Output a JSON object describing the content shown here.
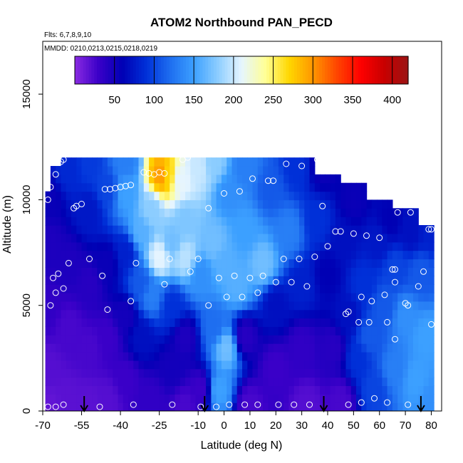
{
  "chart_data": {
    "type": "heatmap",
    "title": "ATOM2 Northbound PAN_PECD",
    "flights_note": "Flts: 6,7,8,9,10",
    "dates_note": "MMDD: 0210,0213,0215,0218,0219",
    "xlabel": "Latitude (deg N)",
    "ylabel": "Altitude (m)",
    "xlim": [
      -70,
      84
    ],
    "ylim": [
      0,
      17500
    ],
    "xticks": [
      -70,
      -55,
      -40,
      -25,
      -10,
      0,
      10,
      20,
      30,
      40,
      50,
      60,
      70,
      80
    ],
    "xtick_labels": [
      "-70",
      "-55",
      "-40",
      "-25",
      "-10",
      "0",
      "10",
      "20",
      "30",
      "40",
      "50",
      "60",
      "70",
      "80"
    ],
    "yticks": [
      0,
      5000,
      10000,
      15000
    ],
    "ytick_labels": [
      "0",
      "5000",
      "10000",
      "15000"
    ],
    "colorbar": {
      "range": [
        0,
        420
      ],
      "ticks": [
        50,
        100,
        150,
        200,
        250,
        300,
        350,
        400
      ],
      "tick_labels": [
        "50",
        "100",
        "150",
        "200",
        "250",
        "300",
        "350",
        "400"
      ],
      "colors": [
        "#8a2be2",
        "#3a00c8",
        "#0000b4",
        "#0030d8",
        "#1e6ef0",
        "#3ca0ff",
        "#8ccdff",
        "#e6f5ff",
        "#ffff96",
        "#ffd700",
        "#ff9600",
        "#ff4600",
        "#ff0000",
        "#c80000",
        "#9b1414"
      ]
    },
    "grid": false,
    "legend": "colorbar top",
    "takeoff_arrows_lat": [
      -54,
      -7.5,
      38.5,
      76
    ],
    "field_points": [
      {
        "x": -68,
        "y": 200,
        "v": 15
      },
      {
        "x": -68,
        "y": 2000,
        "v": 20
      },
      {
        "x": -68,
        "y": 5000,
        "v": 35
      },
      {
        "x": -68,
        "y": 8000,
        "v": 45
      },
      {
        "x": -68,
        "y": 10000,
        "v": 55
      },
      {
        "x": -60,
        "y": 500,
        "v": 18
      },
      {
        "x": -60,
        "y": 4000,
        "v": 25
      },
      {
        "x": -60,
        "y": 7000,
        "v": 45
      },
      {
        "x": -60,
        "y": 11500,
        "v": 85
      },
      {
        "x": -52,
        "y": 300,
        "v": 18
      },
      {
        "x": -52,
        "y": 3000,
        "v": 25
      },
      {
        "x": -52,
        "y": 6000,
        "v": 40
      },
      {
        "x": -52,
        "y": 9500,
        "v": 75
      },
      {
        "x": -52,
        "y": 11800,
        "v": 95
      },
      {
        "x": -45,
        "y": 500,
        "v": 20
      },
      {
        "x": -45,
        "y": 3500,
        "v": 30
      },
      {
        "x": -45,
        "y": 7000,
        "v": 55
      },
      {
        "x": -45,
        "y": 10500,
        "v": 100
      },
      {
        "x": -38,
        "y": 1500,
        "v": 30
      },
      {
        "x": -38,
        "y": 4500,
        "v": 50
      },
      {
        "x": -38,
        "y": 7500,
        "v": 80
      },
      {
        "x": -38,
        "y": 10300,
        "v": 150
      },
      {
        "x": -38,
        "y": 11800,
        "v": 130
      },
      {
        "x": -32,
        "y": 3500,
        "v": 70
      },
      {
        "x": -32,
        "y": 6000,
        "v": 110
      },
      {
        "x": -32,
        "y": 8500,
        "v": 160
      },
      {
        "x": -28,
        "y": 500,
        "v": 35
      },
      {
        "x": -28,
        "y": 5500,
        "v": 130
      },
      {
        "x": -28,
        "y": 9500,
        "v": 180
      },
      {
        "x": -25,
        "y": 7300,
        "v": 210
      },
      {
        "x": -24,
        "y": 11200,
        "v": 300
      },
      {
        "x": -22,
        "y": 11200,
        "v": 270
      },
      {
        "x": -20,
        "y": 8000,
        "v": 170
      },
      {
        "x": -20,
        "y": 5000,
        "v": 90
      },
      {
        "x": -20,
        "y": 2000,
        "v": 50
      },
      {
        "x": -17,
        "y": 11000,
        "v": 210
      },
      {
        "x": -15,
        "y": 9000,
        "v": 175
      },
      {
        "x": -15,
        "y": 7300,
        "v": 195
      },
      {
        "x": -15,
        "y": 3500,
        "v": 45
      },
      {
        "x": -15,
        "y": 300,
        "v": 25
      },
      {
        "x": -10,
        "y": 11500,
        "v": 200
      },
      {
        "x": -9,
        "y": 6500,
        "v": 140
      },
      {
        "x": -9,
        "y": 1000,
        "v": 30
      },
      {
        "x": -4,
        "y": 11800,
        "v": 180
      },
      {
        "x": -4,
        "y": 8000,
        "v": 170
      },
      {
        "x": -4,
        "y": 4000,
        "v": 120
      },
      {
        "x": -2,
        "y": 1000,
        "v": 150
      },
      {
        "x": 0,
        "y": 7000,
        "v": 160
      },
      {
        "x": 1,
        "y": 3000,
        "v": 170
      },
      {
        "x": 2,
        "y": 10300,
        "v": 140
      },
      {
        "x": 5,
        "y": 6000,
        "v": 160
      },
      {
        "x": 8,
        "y": 11500,
        "v": 130
      },
      {
        "x": 8,
        "y": 8500,
        "v": 150
      },
      {
        "x": 8,
        "y": 3500,
        "v": 40
      },
      {
        "x": 10,
        "y": 300,
        "v": 25
      },
      {
        "x": 15,
        "y": 7000,
        "v": 170
      },
      {
        "x": 18,
        "y": 10500,
        "v": 110
      },
      {
        "x": 20,
        "y": 5000,
        "v": 70
      },
      {
        "x": 20,
        "y": 2000,
        "v": 30
      },
      {
        "x": 25,
        "y": 8500,
        "v": 130
      },
      {
        "x": 28,
        "y": 11500,
        "v": 90
      },
      {
        "x": 30,
        "y": 6000,
        "v": 80
      },
      {
        "x": 30,
        "y": 3000,
        "v": 35
      },
      {
        "x": 32,
        "y": 300,
        "v": 20
      },
      {
        "x": 36,
        "y": 9000,
        "v": 90
      },
      {
        "x": 38,
        "y": 11500,
        "v": 55
      },
      {
        "x": 40,
        "y": 6500,
        "v": 60
      },
      {
        "x": 42,
        "y": 3000,
        "v": 40
      },
      {
        "x": 45,
        "y": 500,
        "v": 25
      },
      {
        "x": 46,
        "y": 8000,
        "v": 70
      },
      {
        "x": 48,
        "y": 4500,
        "v": 70
      },
      {
        "x": 50,
        "y": 10000,
        "v": 55
      },
      {
        "x": 52,
        "y": 2500,
        "v": 90
      },
      {
        "x": 54,
        "y": 6000,
        "v": 90
      },
      {
        "x": 56,
        "y": 3500,
        "v": 110
      },
      {
        "x": 58,
        "y": 1000,
        "v": 100
      },
      {
        "x": 60,
        "y": 8000,
        "v": 75
      },
      {
        "x": 62,
        "y": 5000,
        "v": 110
      },
      {
        "x": 64,
        "y": 9000,
        "v": 60
      },
      {
        "x": 66,
        "y": 2000,
        "v": 130
      },
      {
        "x": 66,
        "y": 6800,
        "v": 100
      },
      {
        "x": 70,
        "y": 4500,
        "v": 140
      },
      {
        "x": 72,
        "y": 8500,
        "v": 70
      },
      {
        "x": 74,
        "y": 1500,
        "v": 150
      },
      {
        "x": 76,
        "y": 6500,
        "v": 110
      },
      {
        "x": 78,
        "y": 3500,
        "v": 150
      },
      {
        "x": 80,
        "y": 8500,
        "v": 80
      },
      {
        "x": 80,
        "y": 500,
        "v": 140
      }
    ],
    "observation_points": [
      {
        "x": -68,
        "y": 200
      },
      {
        "x": -65,
        "y": 200
      },
      {
        "x": -62,
        "y": 300
      },
      {
        "x": -68,
        "y": 10000
      },
      {
        "x": -67,
        "y": 10600
      },
      {
        "x": -65,
        "y": 11200
      },
      {
        "x": -63,
        "y": 11800
      },
      {
        "x": -62,
        "y": 11900
      },
      {
        "x": -64,
        "y": 6500
      },
      {
        "x": -66,
        "y": 6300
      },
      {
        "x": -67,
        "y": 5000
      },
      {
        "x": -65,
        "y": 5600
      },
      {
        "x": -62,
        "y": 5800
      },
      {
        "x": -60,
        "y": 7000
      },
      {
        "x": -58,
        "y": 9600
      },
      {
        "x": -57,
        "y": 9700
      },
      {
        "x": -55,
        "y": 9800
      },
      {
        "x": -52,
        "y": 7200
      },
      {
        "x": -48,
        "y": 200
      },
      {
        "x": -47,
        "y": 6400
      },
      {
        "x": -45,
        "y": 4800
      },
      {
        "x": -46,
        "y": 10500
      },
      {
        "x": -44,
        "y": 10500
      },
      {
        "x": -42,
        "y": 10550
      },
      {
        "x": -40,
        "y": 10600
      },
      {
        "x": -38,
        "y": 10650
      },
      {
        "x": -36,
        "y": 10700
      },
      {
        "x": -36,
        "y": 5200
      },
      {
        "x": -35,
        "y": 300
      },
      {
        "x": -34,
        "y": 7000
      },
      {
        "x": -31,
        "y": 11300
      },
      {
        "x": -29,
        "y": 11250
      },
      {
        "x": -27,
        "y": 11200
      },
      {
        "x": -25,
        "y": 11300
      },
      {
        "x": -23,
        "y": 11250
      },
      {
        "x": -23,
        "y": 6000
      },
      {
        "x": -21,
        "y": 7200
      },
      {
        "x": -20,
        "y": 300
      },
      {
        "x": -16,
        "y": 11900
      },
      {
        "x": -14,
        "y": 12000
      },
      {
        "x": -13,
        "y": 6600
      },
      {
        "x": -10,
        "y": 7200
      },
      {
        "x": -9,
        "y": 200
      },
      {
        "x": -6,
        "y": 9600
      },
      {
        "x": -6,
        "y": 5000
      },
      {
        "x": -3,
        "y": 200
      },
      {
        "x": -2,
        "y": 6300
      },
      {
        "x": 0,
        "y": 10300
      },
      {
        "x": 1,
        "y": 5400
      },
      {
        "x": 2,
        "y": 300
      },
      {
        "x": 4,
        "y": 6400
      },
      {
        "x": 6,
        "y": 10400
      },
      {
        "x": 7,
        "y": 5400
      },
      {
        "x": 8,
        "y": 300
      },
      {
        "x": 10,
        "y": 6300
      },
      {
        "x": 11,
        "y": 11000
      },
      {
        "x": 13,
        "y": 5600
      },
      {
        "x": 13,
        "y": 300
      },
      {
        "x": 15,
        "y": 6400
      },
      {
        "x": 17,
        "y": 10900
      },
      {
        "x": 19,
        "y": 10900
      },
      {
        "x": 20,
        "y": 6100
      },
      {
        "x": 21,
        "y": 300
      },
      {
        "x": 23,
        "y": 7200
      },
      {
        "x": 24,
        "y": 11700
      },
      {
        "x": 26,
        "y": 6100
      },
      {
        "x": 27,
        "y": 300
      },
      {
        "x": 29,
        "y": 7200
      },
      {
        "x": 30,
        "y": 11600
      },
      {
        "x": 32,
        "y": 5900
      },
      {
        "x": 33,
        "y": 300
      },
      {
        "x": 35,
        "y": 7300
      },
      {
        "x": 36,
        "y": 11900
      },
      {
        "x": 38,
        "y": 9700
      },
      {
        "x": 40,
        "y": 7800
      },
      {
        "x": 43,
        "y": 8500
      },
      {
        "x": 45,
        "y": 8500
      },
      {
        "x": 47,
        "y": 4600
      },
      {
        "x": 48,
        "y": 4700
      },
      {
        "x": 48,
        "y": 300
      },
      {
        "x": 50,
        "y": 8400
      },
      {
        "x": 52,
        "y": 4200
      },
      {
        "x": 53,
        "y": 5400
      },
      {
        "x": 53,
        "y": 400
      },
      {
        "x": 55,
        "y": 8300
      },
      {
        "x": 56,
        "y": 4200
      },
      {
        "x": 57,
        "y": 5200
      },
      {
        "x": 58,
        "y": 600
      },
      {
        "x": 60,
        "y": 8200
      },
      {
        "x": 62,
        "y": 5500
      },
      {
        "x": 63,
        "y": 4200
      },
      {
        "x": 63,
        "y": 400
      },
      {
        "x": 65,
        "y": 6700
      },
      {
        "x": 66,
        "y": 6700
      },
      {
        "x": 66,
        "y": 6100
      },
      {
        "x": 66,
        "y": 3400
      },
      {
        "x": 67,
        "y": 9400
      },
      {
        "x": 70,
        "y": 5100
      },
      {
        "x": 71,
        "y": 5000
      },
      {
        "x": 71,
        "y": 300
      },
      {
        "x": 72,
        "y": 9400
      },
      {
        "x": 75,
        "y": 5900
      },
      {
        "x": 77,
        "y": 6600
      },
      {
        "x": 79,
        "y": 8600
      },
      {
        "x": 80,
        "y": 4100
      },
      {
        "x": 80,
        "y": 8600
      }
    ]
  }
}
